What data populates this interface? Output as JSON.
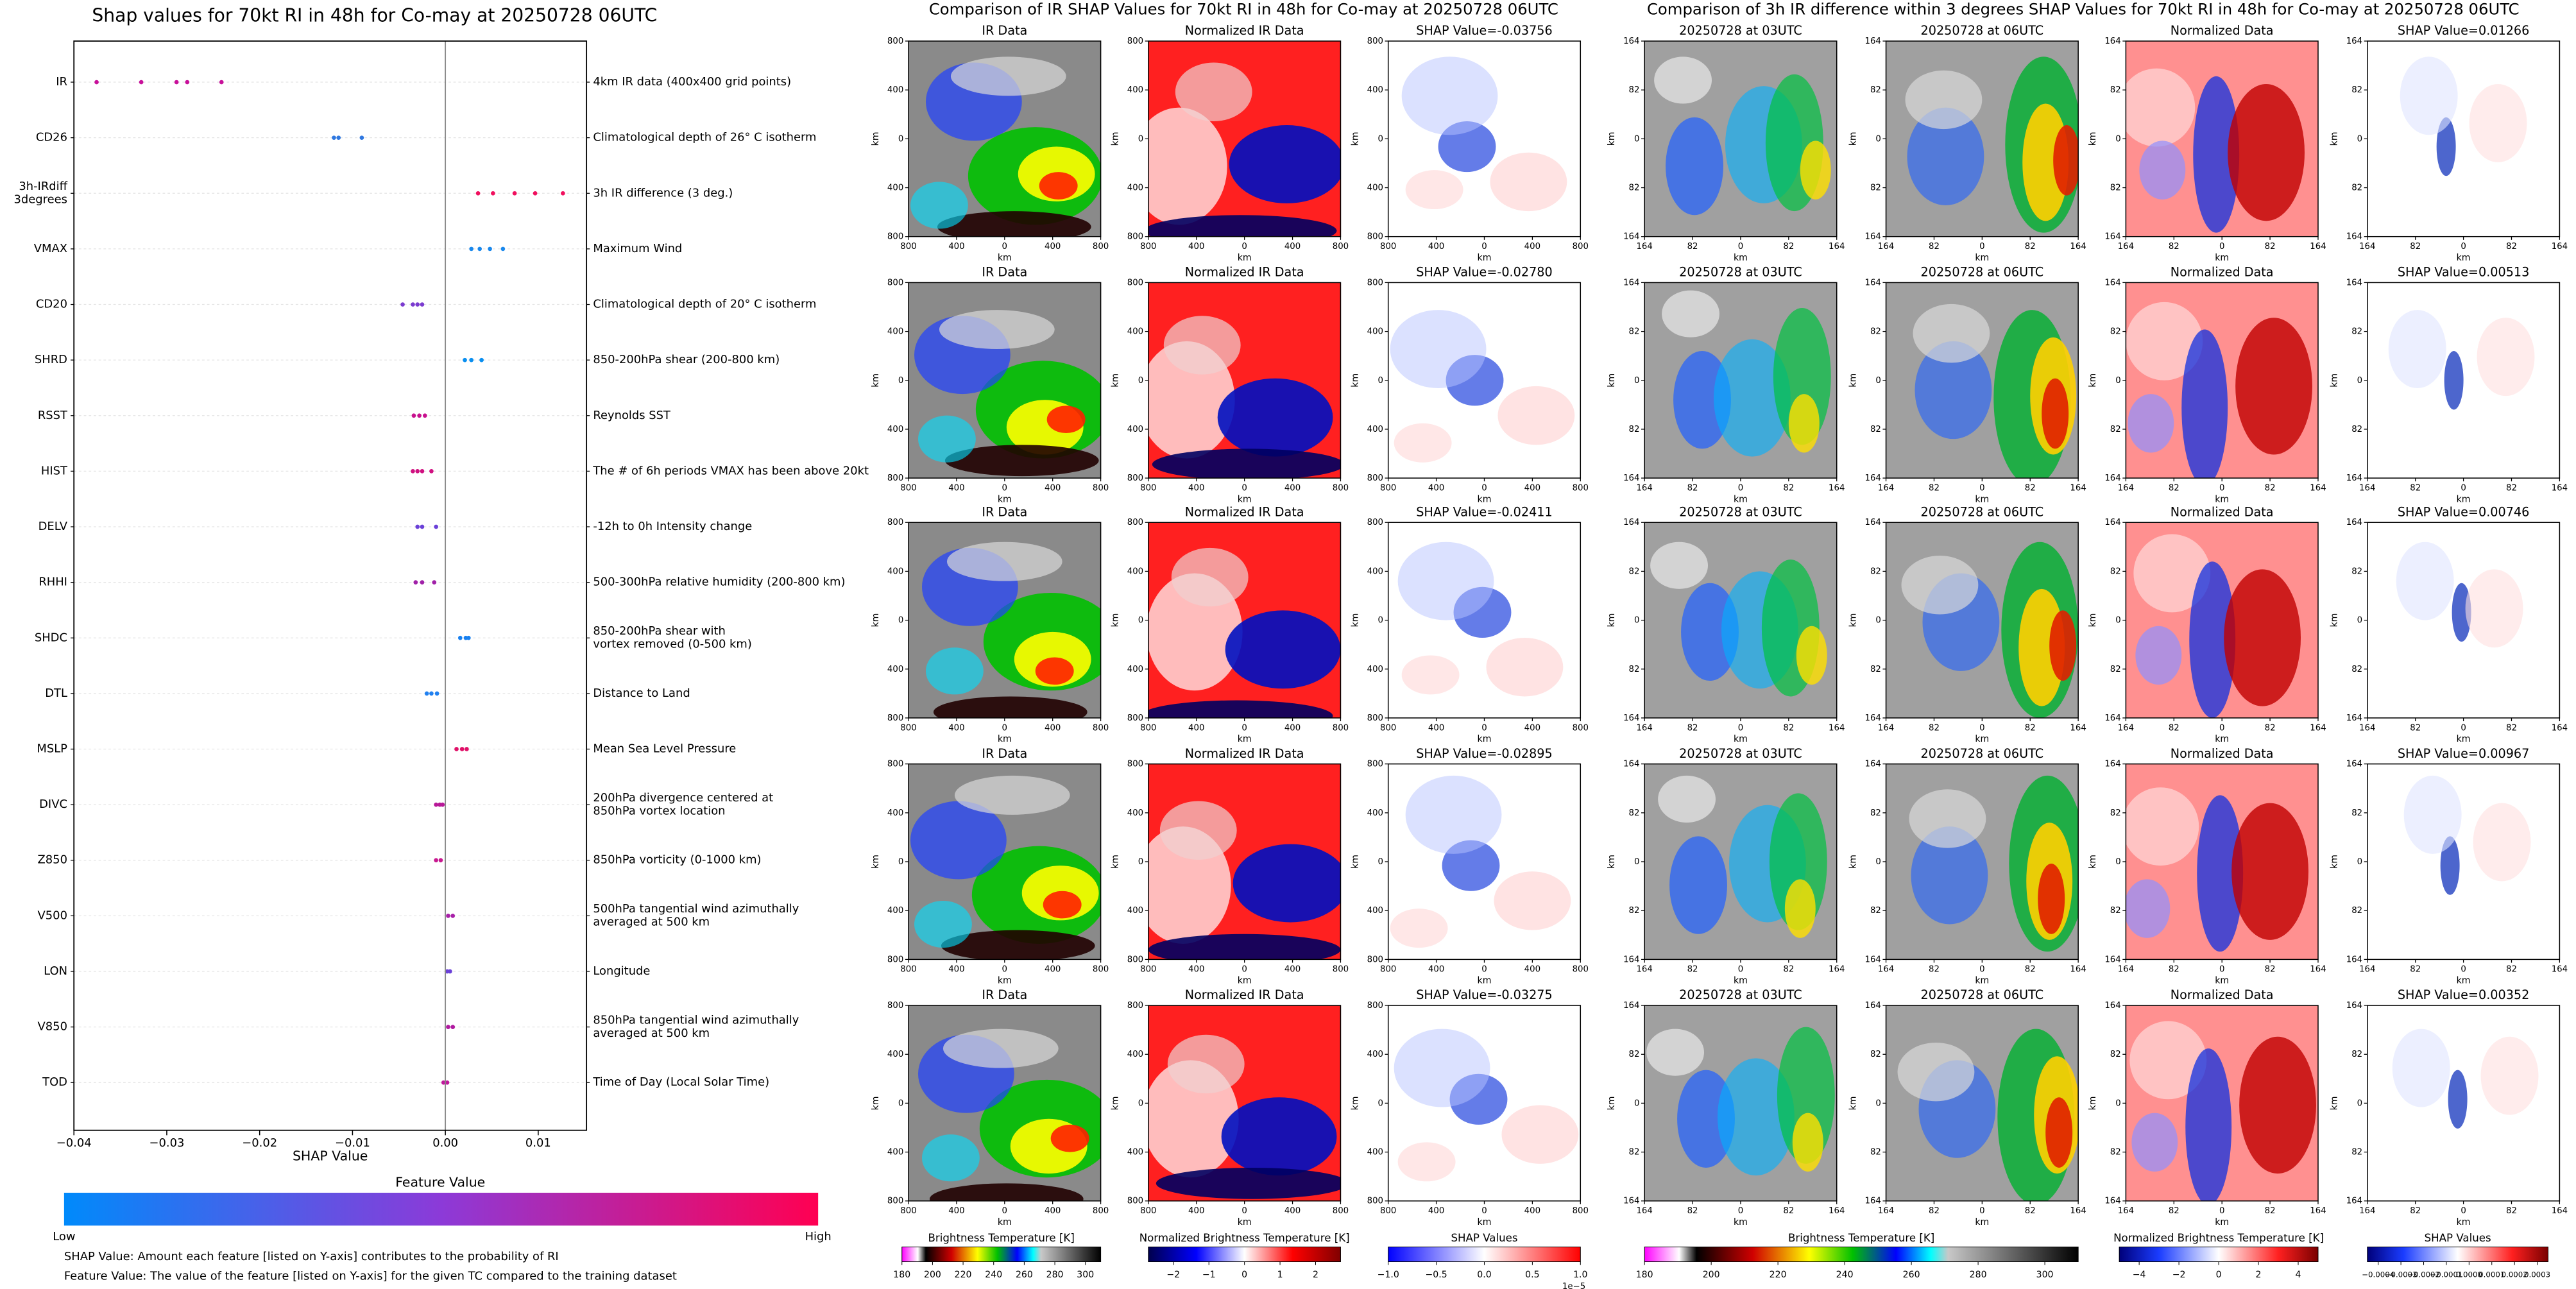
{
  "chart_data": [
    {
      "type": "beeswarm",
      "title": "Shap values for 70kt RI in 48h for Co-may at 20250728 06UTC",
      "xlabel": "SHAP Value",
      "xlim": [
        -0.04,
        0.0152
      ],
      "xticks": [
        {
          "value": -0.04,
          "label": "−0.04"
        },
        {
          "value": -0.03,
          "label": "−0.03"
        },
        {
          "value": -0.02,
          "label": "−0.02"
        },
        {
          "value": -0.01,
          "label": "−0.01"
        },
        {
          "value": 0,
          "label": "0.00"
        },
        0.01
      ],
      "grid": true,
      "series": [
        {
          "name": [
            "IR"
          ],
          "description": [
            "4km IR data (400x400 grid points)"
          ],
          "color": "#c8109a",
          "values": [
            -0.03756,
            -0.03275,
            -0.02895,
            -0.0278,
            -0.02411
          ]
        },
        {
          "name": [
            "CD26"
          ],
          "description": [
            "Climatological depth of 26° C isotherm"
          ],
          "color": "#2f78e0",
          "values": [
            -0.012,
            -0.0115,
            -0.009
          ]
        },
        {
          "name": [
            "3h-IRdiff",
            "3degrees"
          ],
          "description": [
            "3h IR difference (3 deg.)"
          ],
          "color": "#f0105e",
          "values": [
            0.00352,
            0.00513,
            0.00746,
            0.00967,
            0.01266
          ]
        },
        {
          "name": [
            "VMAX"
          ],
          "description": [
            "Maximum Wind"
          ],
          "color": "#1a88ec",
          "values": [
            0.0028,
            0.0037,
            0.0048,
            0.0062
          ]
        },
        {
          "name": [
            "CD20"
          ],
          "description": [
            "Climatological depth of 20° C isotherm"
          ],
          "color": "#7b3bd0",
          "values": [
            -0.0046,
            -0.0035,
            -0.003,
            -0.0025
          ]
        },
        {
          "name": [
            "SHRD"
          ],
          "description": [
            "850-200hPa shear (200-800 km)"
          ],
          "color": "#0a8ff0",
          "values": [
            0.0021,
            0.0028,
            0.0039
          ]
        },
        {
          "name": [
            "RSST"
          ],
          "description": [
            "Reynolds SST"
          ],
          "color": "#c8108e",
          "values": [
            -0.0034,
            -0.0028,
            -0.0022
          ]
        },
        {
          "name": [
            "HIST"
          ],
          "description": [
            "The # of 6h periods VMAX has been above 20kt"
          ],
          "color": "#d01080",
          "values": [
            -0.0035,
            -0.003,
            -0.0025,
            -0.0015
          ]
        },
        {
          "name": [
            "DELV"
          ],
          "description": [
            "-12h to 0h Intensity change"
          ],
          "color": "#6a40d8",
          "values": [
            -0.003,
            -0.0025,
            -0.001
          ]
        },
        {
          "name": [
            "RHHI"
          ],
          "description": [
            "500-300hPa relative humidity (200-800 km)"
          ],
          "color": "#a020a8",
          "values": [
            -0.0032,
            -0.0025,
            -0.0012
          ]
        },
        {
          "name": [
            "SHDC"
          ],
          "description": [
            "850-200hPa shear with",
            "vortex removed (0-500 km)"
          ],
          "color": "#1880f0",
          "values": [
            0.0016,
            0.0022,
            0.0025
          ]
        },
        {
          "name": [
            "DTL"
          ],
          "description": [
            "Distance to Land"
          ],
          "color": "#2080f0",
          "values": [
            -0.002,
            -0.0015,
            -0.0009
          ]
        },
        {
          "name": [
            "MSLP"
          ],
          "description": [
            "Mean Sea Level Pressure"
          ],
          "color": "#e01068",
          "values": [
            0.0012,
            0.0018,
            0.0023
          ]
        },
        {
          "name": [
            "DIVC"
          ],
          "description": [
            "200hPa divergence centered at",
            "850hPa vortex location"
          ],
          "color": "#b81898",
          "values": [
            -0.001,
            -0.0006,
            -0.0003
          ]
        },
        {
          "name": [
            "Z850"
          ],
          "description": [
            "850hPa vorticity (0-1000 km)"
          ],
          "color": "#c81890",
          "values": [
            -0.001,
            -0.0005
          ]
        },
        {
          "name": [
            "V500"
          ],
          "description": [
            "500hPa tangential wind azimuthally",
            "averaged at 500 km"
          ],
          "color": "#a820a8",
          "values": [
            0.0003,
            0.0008
          ]
        },
        {
          "name": [
            "LON"
          ],
          "description": [
            "Longitude"
          ],
          "color": "#6a40d8",
          "values": [
            0.0002,
            0.0005
          ]
        },
        {
          "name": [
            "V850"
          ],
          "description": [
            "850hPa tangential wind azimuthally",
            "averaged at 500 km"
          ],
          "color": "#b01aa0",
          "values": [
            0.0003,
            0.0008
          ]
        },
        {
          "name": [
            "TOD"
          ],
          "description": [
            "Time of Day (Local Solar Time)"
          ],
          "color": "#c0189c",
          "values": [
            -0.0002,
            0.0002
          ]
        }
      ],
      "colorbar": {
        "label": "Feature Value",
        "low": "Low",
        "high": "High",
        "colors": [
          "#008afb",
          "#8c3ad8",
          "#ff0052"
        ]
      },
      "notes": [
        "SHAP Value: Amount each feature [listed on Y-axis] contributes to the probability of RI",
        "Feature Value: The value of the feature [listed on Y-axis] for the given TC compared to the training dataset"
      ]
    }
  ],
  "ir_figure": {
    "title": "Comparison of IR SHAP Values for 70kt RI in 48h for Co-may at 20250728 06UTC",
    "rows": [
      [
        "IR Data",
        "Normalized IR Data",
        "SHAP Value=-0.03756"
      ],
      [
        "IR Data",
        "Normalized IR Data",
        "SHAP Value=-0.02780"
      ],
      [
        "IR Data",
        "Normalized IR Data",
        "SHAP Value=-0.02411"
      ],
      [
        "IR Data",
        "Normalized IR Data",
        "SHAP Value=-0.02895"
      ],
      [
        "IR Data",
        "Normalized IR Data",
        "SHAP Value=-0.03275"
      ]
    ],
    "ticks": [
      "800",
      "400",
      "0",
      "400",
      "800"
    ],
    "axis_label": "km",
    "colorbars": [
      {
        "label": "Brightness Temperature [K]",
        "ticks": [
          "180",
          "200",
          "220",
          "240",
          "260",
          "280",
          "300"
        ]
      },
      {
        "label": "Normalized Brightness Temperature [K]",
        "ticks": [
          "−2",
          "−1",
          "0",
          "1",
          "2"
        ]
      },
      {
        "label": "SHAP Values",
        "ticks": [
          "−1.0",
          "−0.5",
          "0.0",
          "0.5",
          "1.0"
        ],
        "offset": "1e−5"
      }
    ]
  },
  "diff_figure": {
    "title": "Comparison of 3h IR difference within 3 degrees SHAP Values for 70kt RI in 48h for Co-may at 20250728 06UTC",
    "rows": [
      [
        "20250728 at 03UTC",
        "20250728 at 06UTC",
        "Normalized Data",
        "SHAP Value=0.01266"
      ],
      [
        "20250728 at 03UTC",
        "20250728 at 06UTC",
        "Normalized Data",
        "SHAP Value=0.00513"
      ],
      [
        "20250728 at 03UTC",
        "20250728 at 06UTC",
        "Normalized Data",
        "SHAP Value=0.00746"
      ],
      [
        "20250728 at 03UTC",
        "20250728 at 06UTC",
        "Normalized Data",
        "SHAP Value=0.00967"
      ],
      [
        "20250728 at 03UTC",
        "20250728 at 06UTC",
        "Normalized Data",
        "SHAP Value=0.00352"
      ]
    ],
    "ticks": [
      "164",
      "82",
      "0",
      "82",
      "164"
    ],
    "axis_label": "km",
    "colorbars": [
      {
        "label": "Brightness Temperature [K]",
        "ticks": [
          "180",
          "200",
          "220",
          "240",
          "260",
          "280",
          "300"
        ]
      },
      {
        "label": "Normalized Brightness Temperature [K]",
        "ticks": [
          "−4",
          "−2",
          "0",
          "2",
          "4"
        ]
      },
      {
        "label": "SHAP Values",
        "ticks": [
          "−0.0004",
          "−0.0003",
          "−0.0002",
          "−0.0001",
          "0.0000",
          "0.0001",
          "0.0002",
          "0.0003"
        ]
      }
    ]
  }
}
